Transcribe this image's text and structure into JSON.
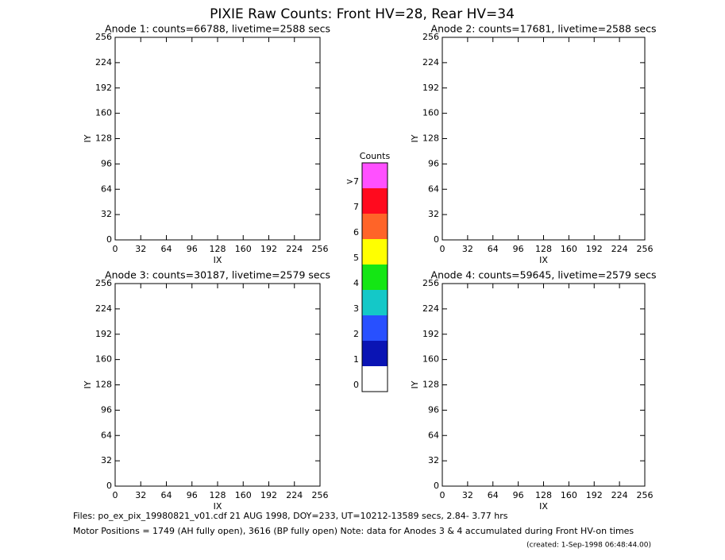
{
  "title": "PIXIE Raw Counts:  Front HV=28, Rear HV=34",
  "chart_data": [
    {
      "type": "heatmap",
      "title": "Anode 1: counts=66788, livetime=2588 secs",
      "xlabel": "IX",
      "ylabel": "IY",
      "xlim": [
        0,
        256
      ],
      "ylim": [
        0,
        256
      ],
      "xticks": [
        0,
        32,
        64,
        96,
        128,
        160,
        192,
        224,
        256
      ],
      "yticks": [
        0,
        32,
        64,
        96,
        128,
        160,
        192,
        224,
        256
      ]
    },
    {
      "type": "heatmap",
      "title": "Anode 2: counts=17681, livetime=2588 secs",
      "xlabel": "IX",
      "ylabel": "IY",
      "xlim": [
        0,
        256
      ],
      "ylim": [
        0,
        256
      ],
      "xticks": [
        0,
        32,
        64,
        96,
        128,
        160,
        192,
        224,
        256
      ],
      "yticks": [
        0,
        32,
        64,
        96,
        128,
        160,
        192,
        224,
        256
      ]
    },
    {
      "type": "heatmap",
      "title": "Anode 3: counts=30187, livetime=2579 secs",
      "xlabel": "IX",
      "ylabel": "IY",
      "xlim": [
        0,
        256
      ],
      "ylim": [
        0,
        256
      ],
      "xticks": [
        0,
        32,
        64,
        96,
        128,
        160,
        192,
        224,
        256
      ],
      "yticks": [
        0,
        32,
        64,
        96,
        128,
        160,
        192,
        224,
        256
      ]
    },
    {
      "type": "heatmap",
      "title": "Anode 4: counts=59645, livetime=2579 secs",
      "xlabel": "IX",
      "ylabel": "IY",
      "xlim": [
        0,
        256
      ],
      "ylim": [
        0,
        256
      ],
      "xticks": [
        0,
        32,
        64,
        96,
        128,
        160,
        192,
        224,
        256
      ],
      "yticks": [
        0,
        32,
        64,
        96,
        128,
        160,
        192,
        224,
        256
      ]
    }
  ],
  "colorbar": {
    "title": "Counts",
    "labels": [
      "0",
      "1",
      "2",
      "3",
      "4",
      "5",
      "6",
      "7",
      ">7"
    ],
    "colors": [
      "#ffffff",
      "#0a14b4",
      "#2850ff",
      "#14c8c8",
      "#14e614",
      "#ffff00",
      "#ff6428",
      "#ff0a1e",
      "#ff50ff"
    ]
  },
  "footer": {
    "line1": "Files: po_ex_pix_19980821_v01.cdf    21 AUG 1998, DOY=233, UT=10212-13589 secs,  2.84- 3.77 hrs",
    "line2": "Motor Positions = 1749 (AH fully open), 3616 (BP fully open)    Note: data for Anodes 3 & 4 accumulated during Front HV-on times",
    "created": "(created:  1-Sep-1998 06:48:44.00)"
  }
}
